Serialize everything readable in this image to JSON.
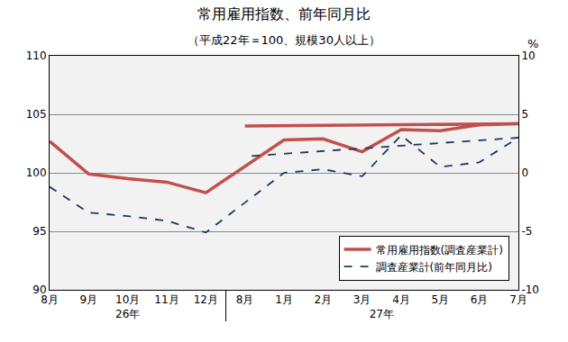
{
  "chart_data": {
    "type": "line",
    "title": "常用雇用指数、前年同月比",
    "subtitle": "（平成22年＝100、規模30人以上）",
    "categories": [
      "8月",
      "9月",
      "10月",
      "11月",
      "12月",
      "1月",
      "2月",
      "3月",
      "4月",
      "5月",
      "6月",
      "7月",
      "8月"
    ],
    "years": [
      "26年",
      "26年",
      "26年",
      "26年",
      "26年",
      "27年",
      "27年",
      "27年",
      "27年",
      "27年",
      "27年",
      "27年",
      "27年"
    ],
    "series": [
      {
        "name": "常用雇用指数(調査産業計)",
        "color": "#c0504d",
        "line_style": "solid",
        "values": [
          102.7,
          99.9,
          99.5,
          99.2,
          98.3,
          102.8,
          102.9,
          101.8,
          103.7,
          103.6,
          104.1,
          104.2,
          104.0
        ]
      },
      {
        "name": "調査産業計(前年同月比)",
        "color": "#1f3864",
        "line_style": "dash",
        "axis": "y2",
        "values": [
          -1.2,
          -3.4,
          -3.7,
          -4.1,
          -5.1,
          0.0,
          0.3,
          -0.3,
          3.2,
          0.5,
          0.9,
          3.0,
          1.4
        ]
      }
    ],
    "ylim": [
      90,
      110
    ],
    "yticks": [
      90,
      95,
      100,
      105,
      110
    ],
    "y2lim": [
      -10,
      10
    ],
    "y2ticks": [
      -10,
      -5,
      0,
      5,
      10
    ],
    "y2label": "%",
    "grid": true,
    "legend": "lower right"
  }
}
